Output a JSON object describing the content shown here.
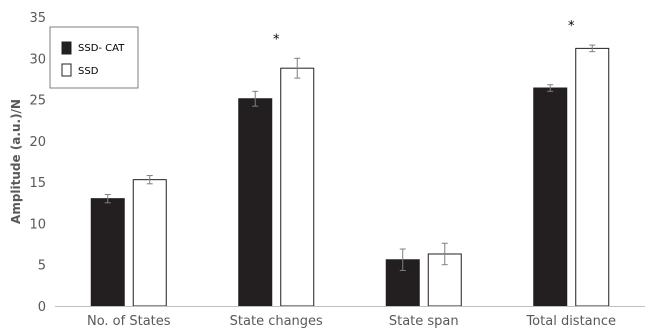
{
  "chart_data": {
    "type": "bar",
    "ylabel": "Amplitude (a.u.)/N",
    "xlabel": "",
    "title": "",
    "ylim": [
      0,
      35
    ],
    "yticks": [
      0,
      5,
      10,
      15,
      20,
      25,
      30,
      35
    ],
    "grid": false,
    "legend_position": "top-left",
    "categories": [
      "No. of States",
      "State changes",
      "State span",
      "Total distance"
    ],
    "series": [
      {
        "name": "SSD- CAT",
        "color": "#231f20",
        "values": [
          13.0,
          25.1,
          5.6,
          26.4
        ],
        "errors": [
          0.5,
          0.9,
          1.3,
          0.4
        ]
      },
      {
        "name": "SSD",
        "color": "#ffffff",
        "values": [
          15.3,
          28.8,
          6.3,
          31.2
        ],
        "errors": [
          0.5,
          1.2,
          1.3,
          0.4
        ]
      }
    ],
    "significance": [
      "",
      "*",
      "",
      "*"
    ]
  }
}
